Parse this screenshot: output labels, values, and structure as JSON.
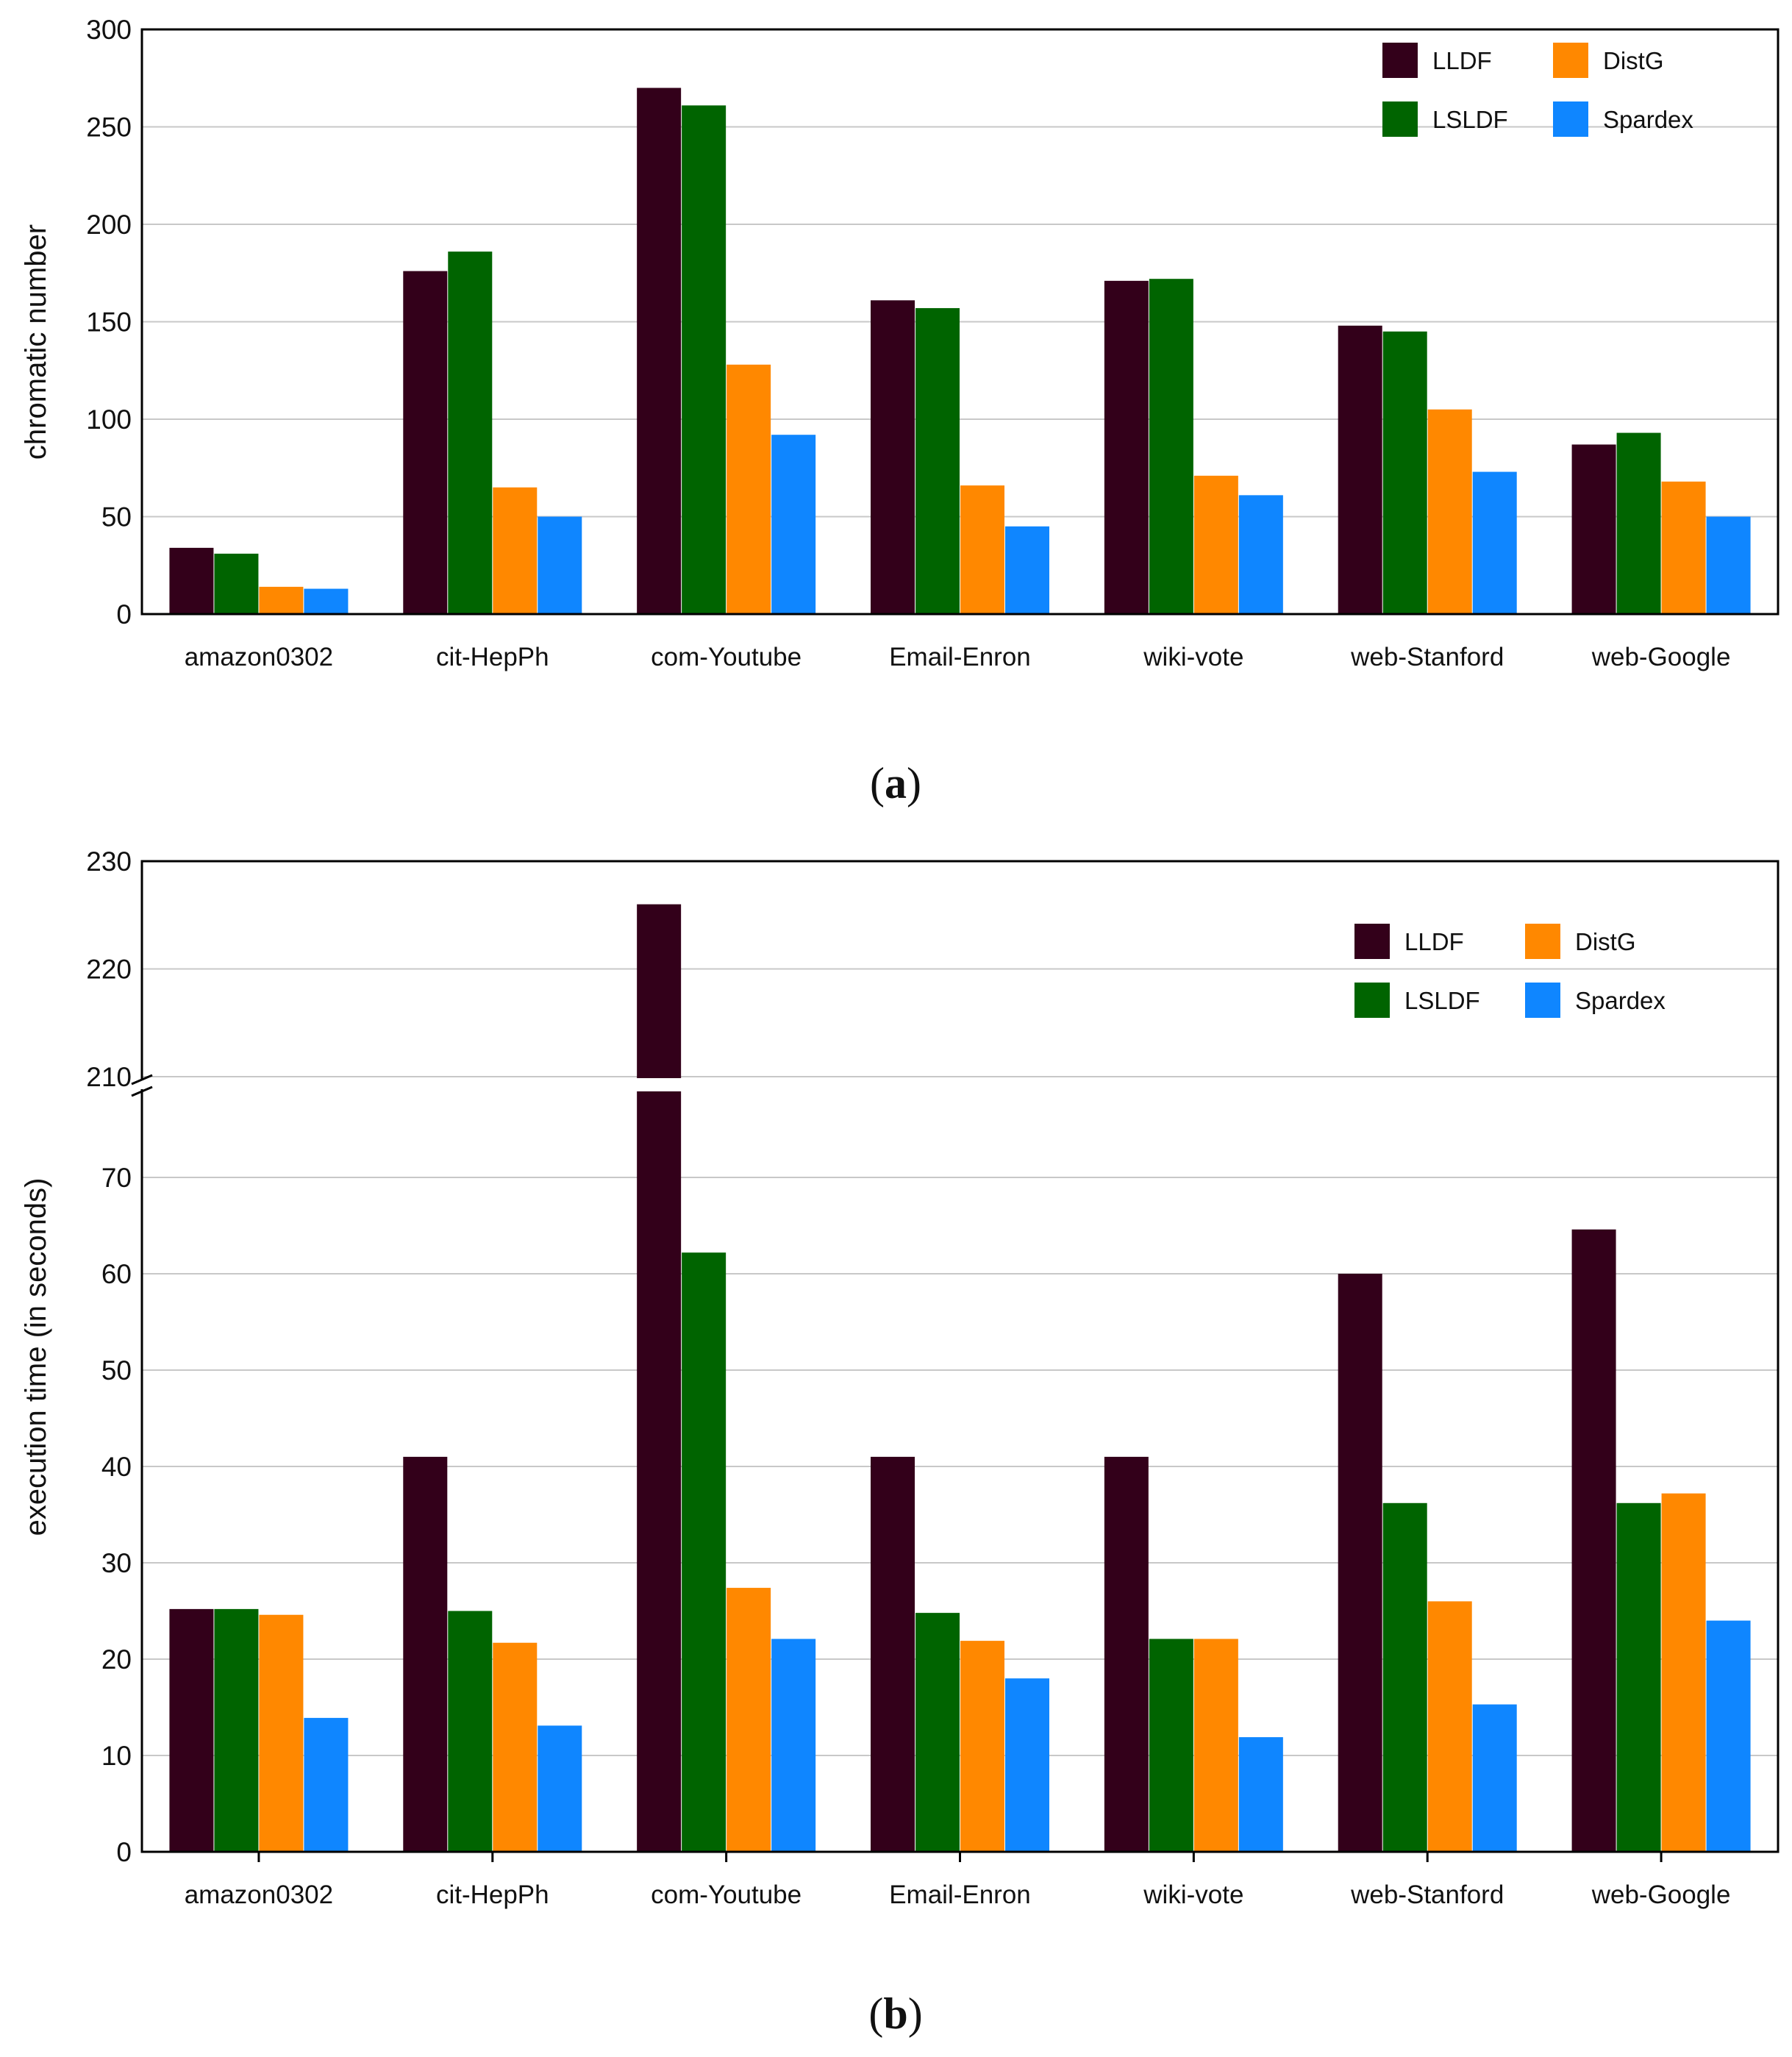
{
  "chart_data": [
    {
      "type": "bar",
      "panel_label": "a",
      "ylabel": "chromatic number",
      "xlabel": "",
      "ylim": [
        0,
        300
      ],
      "yticks": [
        0,
        50,
        100,
        150,
        200,
        250,
        300
      ],
      "grid": true,
      "legend_position": "top-right",
      "categories": [
        "amazon0302",
        "cit-HepPh",
        "com-Youtube",
        "Email-Enron",
        "wiki-vote",
        "web-Stanford",
        "web-Google"
      ],
      "series": [
        {
          "name": "LLDF",
          "color": "#33001a",
          "values": [
            34,
            176,
            270,
            161,
            171,
            148,
            87
          ]
        },
        {
          "name": "LSLDF",
          "color": "#006400",
          "values": [
            31,
            186,
            261,
            157,
            172,
            145,
            93
          ]
        },
        {
          "name": "DistG",
          "color": "#ff8800",
          "values": [
            14,
            65,
            128,
            66,
            71,
            105,
            68
          ]
        },
        {
          "name": "Spardex",
          "color": "#0f86ff",
          "values": [
            13,
            50,
            92,
            45,
            61,
            73,
            50
          ]
        }
      ]
    },
    {
      "type": "bar",
      "panel_label": "b",
      "ylabel": "execution time (in seconds)",
      "xlabel": "",
      "ylim": [
        0,
        230
      ],
      "axis_break": [
        77,
        210
      ],
      "yticks": [
        0,
        10,
        20,
        30,
        40,
        50,
        60,
        70,
        210,
        220,
        230
      ],
      "grid": true,
      "legend_position": "top-right",
      "categories": [
        "amazon0302",
        "cit-HepPh",
        "com-Youtube",
        "Email-Enron",
        "wiki-vote",
        "web-Stanford",
        "web-Google"
      ],
      "series": [
        {
          "name": "LLDF",
          "color": "#33001a",
          "values": [
            25.2,
            41,
            226,
            41,
            41,
            60,
            64.6
          ]
        },
        {
          "name": "LSLDF",
          "color": "#006400",
          "values": [
            25.2,
            25,
            62.2,
            24.8,
            22.1,
            36.2,
            36.2
          ]
        },
        {
          "name": "DistG",
          "color": "#ff8800",
          "values": [
            24.6,
            21.7,
            27.4,
            21.9,
            22.1,
            26,
            37.2
          ]
        },
        {
          "name": "Spardex",
          "color": "#0f86ff",
          "values": [
            13.9,
            13.1,
            22.1,
            18,
            11.9,
            15.3,
            24
          ]
        }
      ]
    }
  ]
}
